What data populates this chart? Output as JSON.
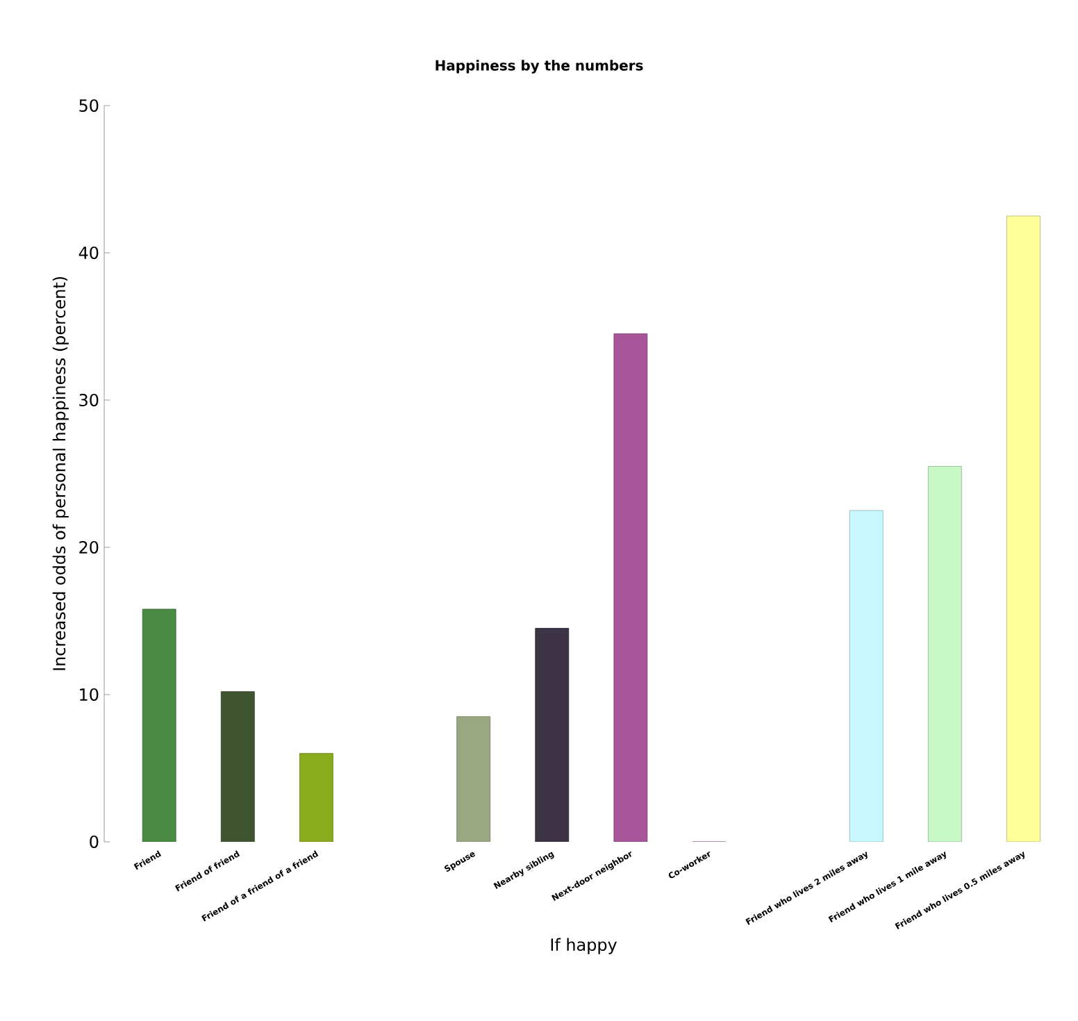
{
  "chart_data": {
    "type": "bar",
    "title": "Happiness by the numbers",
    "xlabel": "If happy",
    "ylabel": "Increased odds of personal happiness (percent)",
    "categories": [
      "Friend",
      "Friend of friend",
      "Friend of a friend of a friend",
      null,
      "Spouse",
      "Nearby sibling",
      "Next-door neighbor",
      "Co-worker",
      null,
      "Friend who lives 2 miles away",
      "Friend who lives 1 mile away",
      "Friend who lives 0.5 miles away"
    ],
    "values": [
      15.8,
      10.2,
      6,
      null,
      8.5,
      14.5,
      34.5,
      0,
      null,
      22.5,
      25.5,
      42.5
    ],
    "colors": [
      "#4a8a42",
      "#3f5530",
      "#8aab1e",
      null,
      "#9aa882",
      "#3c3444",
      "#a8559a",
      "#c080c0",
      null,
      "#c8f8ff",
      "#c8f8c8",
      "#ffff99"
    ],
    "ylim": [
      0,
      50
    ],
    "yticks": [
      0,
      10,
      20,
      30,
      40,
      50
    ],
    "grid": false
  }
}
